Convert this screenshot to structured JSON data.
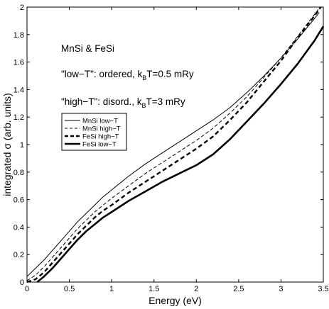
{
  "chart_data": {
    "type": "line",
    "xlabel": "Energy (eV)",
    "ylabel": "integrated σ (arb. units)",
    "xlim": [
      0,
      3.5
    ],
    "ylim": [
      0,
      2
    ],
    "xticks": [
      "0",
      "0.5",
      "1",
      "1.5",
      "2",
      "2.5",
      "3",
      "3.5"
    ],
    "yticks": [
      "0",
      "0.2",
      "0.4",
      "0.6",
      "0.8",
      "1",
      "1.2",
      "1.4",
      "1.6",
      "1.8",
      "2"
    ],
    "grid": false,
    "legend_position": "center-left",
    "annotations": {
      "line1": "MnSi & FeSi",
      "line2_pre": "\"low−T\": ordered, k",
      "line2_sub": "B",
      "line2_post": "T=0.5 mRy",
      "line3_pre": "\"high−T\": disord., k",
      "line3_sub": "B",
      "line3_post": "T=3 mRy"
    },
    "series": [
      {
        "name": "MnSi low−T",
        "style": "thin-solid",
        "x": [
          0,
          0.1,
          0.2,
          0.3,
          0.4,
          0.5,
          0.6,
          0.7,
          0.8,
          0.9,
          1.0,
          1.2,
          1.4,
          1.6,
          1.8,
          2.0,
          2.2,
          2.4,
          2.6,
          2.8,
          3.0,
          3.2,
          3.4,
          3.45
        ],
        "values": [
          0.04,
          0.1,
          0.16,
          0.23,
          0.3,
          0.37,
          0.44,
          0.5,
          0.56,
          0.62,
          0.67,
          0.77,
          0.86,
          0.94,
          1.02,
          1.1,
          1.18,
          1.27,
          1.38,
          1.5,
          1.63,
          1.77,
          1.92,
          1.96
        ]
      },
      {
        "name": "MnSi high−T",
        "style": "thin-dashed",
        "x": [
          0,
          0.1,
          0.2,
          0.3,
          0.4,
          0.5,
          0.6,
          0.7,
          0.8,
          0.9,
          1.0,
          1.2,
          1.4,
          1.6,
          1.8,
          2.0,
          2.2,
          2.4,
          2.6,
          2.8,
          3.0,
          3.2,
          3.4,
          3.45
        ],
        "values": [
          0.01,
          0.05,
          0.11,
          0.18,
          0.25,
          0.32,
          0.39,
          0.45,
          0.51,
          0.56,
          0.61,
          0.7,
          0.79,
          0.87,
          0.95,
          1.03,
          1.12,
          1.23,
          1.35,
          1.49,
          1.63,
          1.79,
          1.95,
          1.99
        ]
      },
      {
        "name": "FeSi high−T",
        "style": "thick-dashed",
        "x": [
          0,
          0.1,
          0.2,
          0.3,
          0.4,
          0.5,
          0.6,
          0.7,
          0.8,
          0.9,
          1.0,
          1.2,
          1.4,
          1.6,
          1.8,
          2.0,
          2.2,
          2.4,
          2.6,
          2.8,
          3.0,
          3.2,
          3.4,
          3.47
        ],
        "values": [
          0.0,
          0.02,
          0.07,
          0.14,
          0.21,
          0.28,
          0.35,
          0.41,
          0.47,
          0.52,
          0.56,
          0.65,
          0.73,
          0.81,
          0.89,
          0.97,
          1.06,
          1.18,
          1.31,
          1.46,
          1.61,
          1.78,
          1.94,
          2.0
        ]
      },
      {
        "name": "FeSi low−T",
        "style": "thick-solid",
        "x": [
          0.12,
          0.2,
          0.3,
          0.4,
          0.5,
          0.6,
          0.7,
          0.8,
          0.9,
          1.0,
          1.2,
          1.4,
          1.6,
          1.8,
          2.0,
          2.2,
          2.4,
          2.6,
          2.8,
          3.0,
          3.2,
          3.4,
          3.5
        ],
        "values": [
          0.0,
          0.04,
          0.1,
          0.17,
          0.24,
          0.31,
          0.37,
          0.42,
          0.47,
          0.51,
          0.59,
          0.66,
          0.73,
          0.79,
          0.85,
          0.93,
          1.04,
          1.17,
          1.3,
          1.44,
          1.59,
          1.76,
          1.86
        ]
      }
    ]
  }
}
